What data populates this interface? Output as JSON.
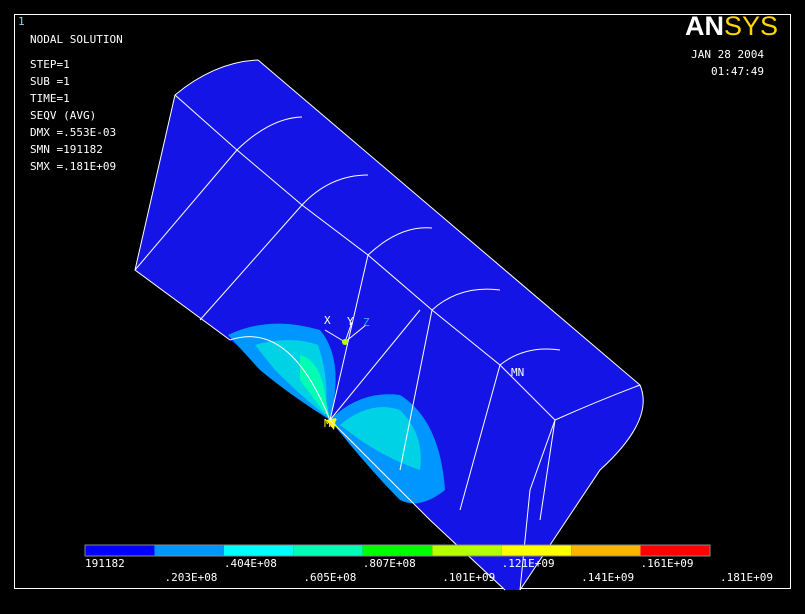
{
  "window_number": "1",
  "logo": [
    "AN",
    "SYS"
  ],
  "info": [
    "NODAL SOLUTION",
    "STEP=1",
    "SUB =1",
    "TIME=1",
    "SEQV     (AVG)",
    "DMX =.553E-03",
    "SMN =191182",
    "SMX =.181E+09"
  ],
  "date": "JAN 28 2004",
  "time": "01:47:49",
  "triad": [
    "X",
    "Y",
    "Z"
  ],
  "min_label": "MN",
  "max_label": "MX",
  "legend": {
    "colors": [
      "#0000ff",
      "#0096ff",
      "#00ffff",
      "#00ffb4",
      "#00ff00",
      "#b4ff00",
      "#ffff00",
      "#ffb400",
      "#ff0000"
    ],
    "labels": [
      "191182",
      ".203E+08",
      ".404E+08",
      ".605E+08",
      ".807E+08",
      ".101E+09",
      ".121E+09",
      ".141E+09",
      ".161E+09",
      ".181E+09"
    ]
  }
}
